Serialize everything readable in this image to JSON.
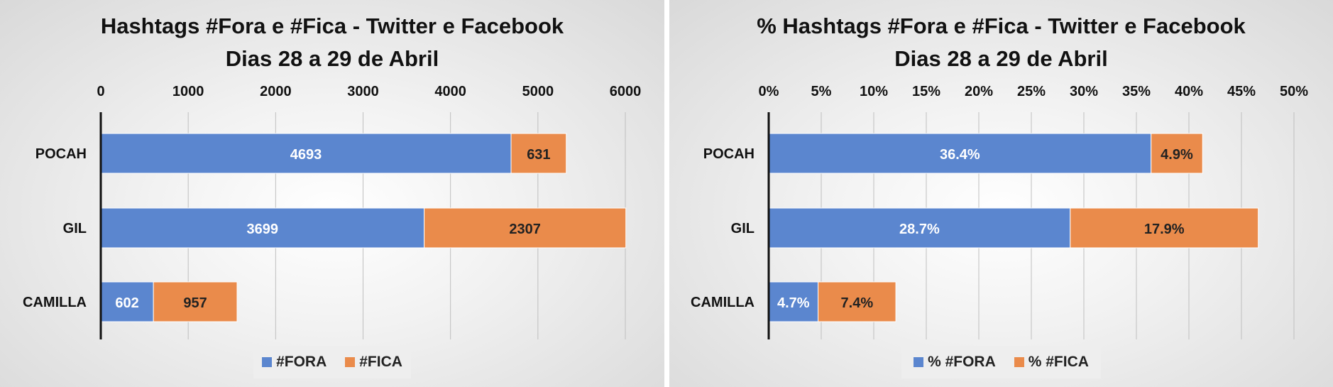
{
  "colors": {
    "fora": "#5b86cf",
    "fica": "#ea8b4b",
    "grid": "#bfbfbf",
    "axis": "#111111"
  },
  "chart_data": [
    {
      "type": "bar",
      "orientation": "horizontal",
      "stacked": true,
      "title": [
        "Hashtags #Fora e #Fica - Twitter e Facebook",
        "Dias 28 a 29 de Abril"
      ],
      "categories": [
        "POCAH",
        "GIL",
        "CAMILLA"
      ],
      "series": [
        {
          "name": "#FORA",
          "values": [
            4693,
            3699,
            602
          ],
          "labels": [
            "4693",
            "3699",
            "602"
          ]
        },
        {
          "name": "#FICA",
          "values": [
            631,
            2307,
            957
          ],
          "labels": [
            "631",
            "2307",
            "957"
          ]
        }
      ],
      "xlim": [
        0,
        6000
      ],
      "ticks": [
        0,
        1000,
        2000,
        3000,
        4000,
        5000,
        6000
      ],
      "tick_labels": [
        "0",
        "1000",
        "2000",
        "3000",
        "4000",
        "5000",
        "6000"
      ],
      "axis_position": "top",
      "grid": true,
      "legend_position": "bottom"
    },
    {
      "type": "bar",
      "orientation": "horizontal",
      "stacked": true,
      "title": [
        "% Hashtags #Fora e #Fica - Twitter e Facebook",
        "Dias 28 a 29 de Abril"
      ],
      "categories": [
        "POCAH",
        "GIL",
        "CAMILLA"
      ],
      "series": [
        {
          "name": "% #FORA",
          "values": [
            36.4,
            28.7,
            4.7
          ],
          "labels": [
            "36.4%",
            "28.7%",
            "4.7%"
          ]
        },
        {
          "name": "% #FICA",
          "values": [
            4.9,
            17.9,
            7.4
          ],
          "labels": [
            "4.9%",
            "17.9%",
            "7.4%"
          ]
        }
      ],
      "xlim": [
        0,
        50
      ],
      "ticks": [
        0,
        5,
        10,
        15,
        20,
        25,
        30,
        35,
        40,
        45,
        50
      ],
      "tick_labels": [
        "0%",
        "5%",
        "10%",
        "15%",
        "20%",
        "25%",
        "30%",
        "35%",
        "40%",
        "45%",
        "50%"
      ],
      "axis_position": "top",
      "grid": true,
      "legend_position": "bottom"
    }
  ]
}
